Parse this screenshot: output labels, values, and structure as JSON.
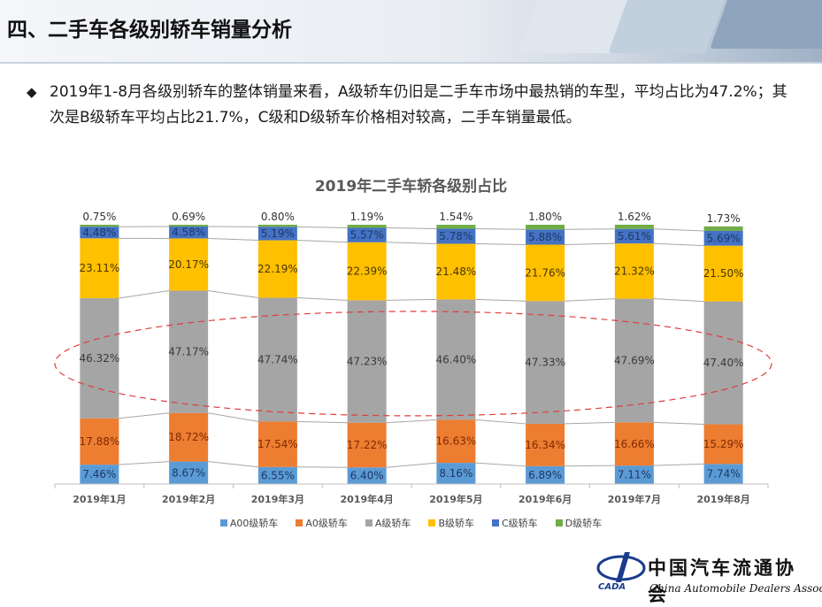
{
  "page": {
    "title": "四、二手车各级别轿车销量分析",
    "bullet": "2019年1-8月各级别轿车的整体销量来看，A级轿车仍旧是二手车市场中最热销的车型，平均占比为47.2%；其次是B级轿车平均占比21.7%，C级和D级轿车价格相对较高，二手车销量最低。"
  },
  "logo": {
    "cn": "中国汽车流通协会",
    "en": "China Automobile Dealers Association",
    "abbr": "CADA"
  },
  "colors": {
    "A00": "#5b9bd5",
    "A0": "#ed7d31",
    "A": "#a5a5a5",
    "B": "#ffc000",
    "C": "#4472c4",
    "D": "#70ad47",
    "ellipse": "#e03c3c"
  },
  "chart_data": {
    "type": "bar",
    "stacked": true,
    "percent": true,
    "title": "2019年二手车轿各级别占比",
    "categories": [
      "2019年1月",
      "2019年2月",
      "2019年3月",
      "2019年4月",
      "2019年5月",
      "2019年6月",
      "2019年7月",
      "2019年8月"
    ],
    "series": [
      {
        "key": "A00",
        "name": "A00级轿车",
        "values": [
          7.46,
          8.67,
          6.55,
          6.4,
          8.16,
          6.89,
          7.11,
          7.74
        ],
        "labels": [
          "7.46%",
          "8.67%",
          "6.55%",
          "6.40%",
          "8.16%",
          "6.89%",
          "7.11%",
          "7.74%"
        ]
      },
      {
        "key": "A0",
        "name": "A0级轿车",
        "values": [
          17.88,
          18.72,
          17.54,
          17.22,
          16.63,
          16.34,
          16.66,
          15.29
        ],
        "labels": [
          "17.88%",
          "18.72%",
          "17.54%",
          "17.22%",
          "16.63%",
          "16.34%",
          "16.66%",
          "15.29%"
        ]
      },
      {
        "key": "A",
        "name": "A级轿车",
        "values": [
          46.32,
          47.17,
          47.74,
          47.23,
          46.4,
          47.33,
          47.69,
          47.4
        ],
        "labels": [
          "46.32%",
          "47.17%",
          "47.74%",
          "47.23%",
          "46.40%",
          "47.33%",
          "47.69%",
          "47.40%"
        ]
      },
      {
        "key": "B",
        "name": "B级轿车",
        "values": [
          23.11,
          20.17,
          22.19,
          22.39,
          21.48,
          21.76,
          21.32,
          21.5
        ],
        "labels": [
          "23.11%",
          "20.17%",
          "22.19%",
          "22.39%",
          "21.48%",
          "21.76%",
          "21.32%",
          "21.50%"
        ]
      },
      {
        "key": "C",
        "name": "C级轿车",
        "values": [
          4.48,
          4.58,
          5.19,
          5.57,
          5.78,
          5.88,
          5.61,
          5.69
        ],
        "labels": [
          "4.48%",
          "4.58%",
          "5.19%",
          "5.57%",
          "5.78%",
          "5.88%",
          "5.61%",
          "5.69%"
        ]
      },
      {
        "key": "D",
        "name": "D级轿车",
        "values": [
          0.75,
          0.69,
          0.8,
          1.19,
          1.54,
          1.8,
          1.62,
          1.73
        ],
        "labels": [
          "0.75%",
          "0.69%",
          "0.80%",
          "1.19%",
          "1.54%",
          "1.80%",
          "1.62%",
          "1.73%"
        ]
      }
    ],
    "ylim": [
      0,
      100
    ],
    "legend_position": "bottom",
    "annotation": "dashed red ellipse around A级轿车 segment"
  }
}
